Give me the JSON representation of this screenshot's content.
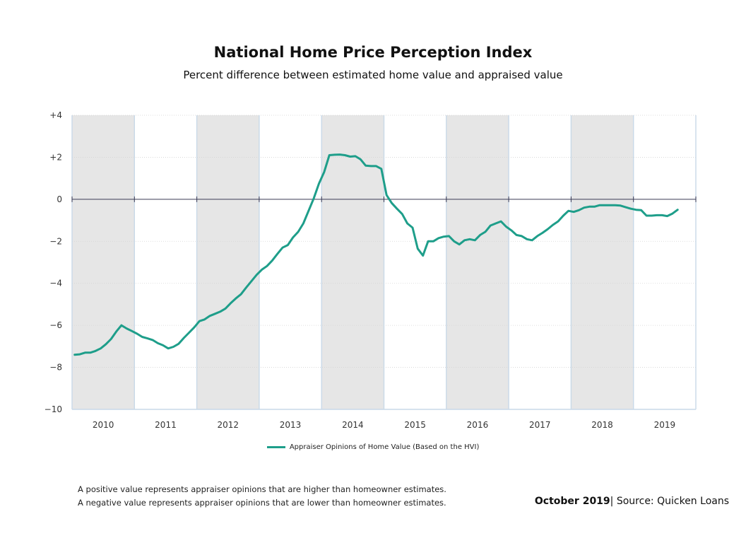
{
  "header": {
    "title": "National Home Price Perception Index",
    "subtitle": "Percent difference between estimated home value and appraised value"
  },
  "legend": {
    "label": "Appraiser Opinions of Home Value (Based on the HVI)"
  },
  "notes": {
    "positive": "A positive value represents appraiser opinions that are higher than homeowner estimates.",
    "negative": "A negative value represents appraiser opinions that are lower than homeowner estimates."
  },
  "source": {
    "date": "October 2019",
    "separator": "|",
    "label": "Source:",
    "name": "Quicken Loans"
  },
  "colors": {
    "line": "#1e9e8a",
    "shade": "#e6e6e6",
    "zero": "#3a3a55",
    "grid": "#d4d4d4"
  },
  "chart_data": {
    "type": "line",
    "title": "National Home Price Perception Index",
    "subtitle": "Percent difference between estimated home value and appraised value",
    "xlabel": "",
    "ylabel": "",
    "ylim": [
      -10,
      4
    ],
    "y_ticks": [
      4,
      2,
      0,
      -2,
      -4,
      -6,
      -8,
      -10
    ],
    "y_tick_labels": [
      "+4",
      "+2",
      "0",
      "−2",
      "−4",
      "−6",
      "−8",
      "−10"
    ],
    "categories": [
      "2010",
      "2011",
      "2012",
      "2013",
      "2014",
      "2015",
      "2016",
      "2017",
      "2018",
      "2019"
    ],
    "shaded_years": [
      "2010",
      "2012",
      "2014",
      "2016",
      "2018"
    ],
    "grid": true,
    "legend_position": "bottom",
    "series": [
      {
        "name": "Appraiser Opinions of Home Value (Based on the HVI)",
        "x": [
          "2010-01",
          "2010-02",
          "2010-03",
          "2010-04",
          "2010-05",
          "2010-06",
          "2010-07",
          "2010-08",
          "2010-09",
          "2010-10",
          "2010-11",
          "2010-12",
          "2011-01",
          "2011-02",
          "2011-03",
          "2011-04",
          "2011-05",
          "2011-06",
          "2011-07",
          "2011-08",
          "2011-09",
          "2011-10",
          "2011-11",
          "2011-12",
          "2012-01",
          "2012-02",
          "2012-03",
          "2012-04",
          "2012-05",
          "2012-06",
          "2012-07",
          "2012-08",
          "2012-09",
          "2012-10",
          "2012-11",
          "2012-12",
          "2013-01",
          "2013-02",
          "2013-03",
          "2013-04",
          "2013-05",
          "2013-06",
          "2013-07",
          "2013-08",
          "2013-09",
          "2013-10",
          "2013-11",
          "2013-12",
          "2014-01",
          "2014-02",
          "2014-03",
          "2014-04",
          "2014-05",
          "2014-06",
          "2014-07",
          "2014-08",
          "2014-09",
          "2014-10",
          "2014-11",
          "2014-12",
          "2015-01",
          "2015-02",
          "2015-03",
          "2015-04",
          "2015-05",
          "2015-06",
          "2015-07",
          "2015-08",
          "2015-09",
          "2015-10",
          "2015-11",
          "2015-12",
          "2016-01",
          "2016-02",
          "2016-03",
          "2016-04",
          "2016-05",
          "2016-06",
          "2016-07",
          "2016-08",
          "2016-09",
          "2016-10",
          "2016-11",
          "2016-12",
          "2017-01",
          "2017-02",
          "2017-03",
          "2017-04",
          "2017-05",
          "2017-06",
          "2017-07",
          "2017-08",
          "2017-09",
          "2017-10",
          "2017-11",
          "2017-12",
          "2018-01",
          "2018-02",
          "2018-03",
          "2018-04",
          "2018-05",
          "2018-06",
          "2018-07",
          "2018-08",
          "2018-09",
          "2018-10",
          "2018-11",
          "2018-12",
          "2019-01",
          "2019-02",
          "2019-03",
          "2019-04",
          "2019-05",
          "2019-06",
          "2019-07",
          "2019-08",
          "2019-09"
        ],
        "values": [
          -7.4,
          -7.38,
          -7.3,
          -7.3,
          -7.22,
          -7.1,
          -6.9,
          -6.65,
          -6.3,
          -6.0,
          -6.15,
          -6.27,
          -6.4,
          -6.55,
          -6.62,
          -6.7,
          -6.85,
          -6.95,
          -7.1,
          -7.02,
          -6.88,
          -6.6,
          -6.35,
          -6.1,
          -5.8,
          -5.72,
          -5.55,
          -5.45,
          -5.35,
          -5.2,
          -4.95,
          -4.72,
          -4.52,
          -4.2,
          -3.9,
          -3.6,
          -3.35,
          -3.18,
          -2.92,
          -2.6,
          -2.3,
          -2.18,
          -1.82,
          -1.55,
          -1.15,
          -0.55,
          0.05,
          0.75,
          1.3,
          2.1,
          2.12,
          2.13,
          2.1,
          2.03,
          2.05,
          1.9,
          1.6,
          1.58,
          1.58,
          1.45,
          0.2,
          -0.18,
          -0.45,
          -0.7,
          -1.15,
          -1.35,
          -2.35,
          -2.68,
          -2.0,
          -2.0,
          -1.85,
          -1.78,
          -1.75,
          -2.0,
          -2.15,
          -1.95,
          -1.9,
          -1.95,
          -1.7,
          -1.55,
          -1.25,
          -1.15,
          -1.05,
          -1.3,
          -1.48,
          -1.7,
          -1.75,
          -1.9,
          -1.95,
          -1.75,
          -1.6,
          -1.42,
          -1.22,
          -1.05,
          -0.78,
          -0.55,
          -0.6,
          -0.52,
          -0.4,
          -0.35,
          -0.35,
          -0.28,
          -0.28,
          -0.28,
          -0.28,
          -0.3,
          -0.38,
          -0.45,
          -0.5,
          -0.52,
          -0.78,
          -0.78,
          -0.76,
          -0.76,
          -0.8,
          -0.68,
          -0.5
        ]
      }
    ]
  }
}
